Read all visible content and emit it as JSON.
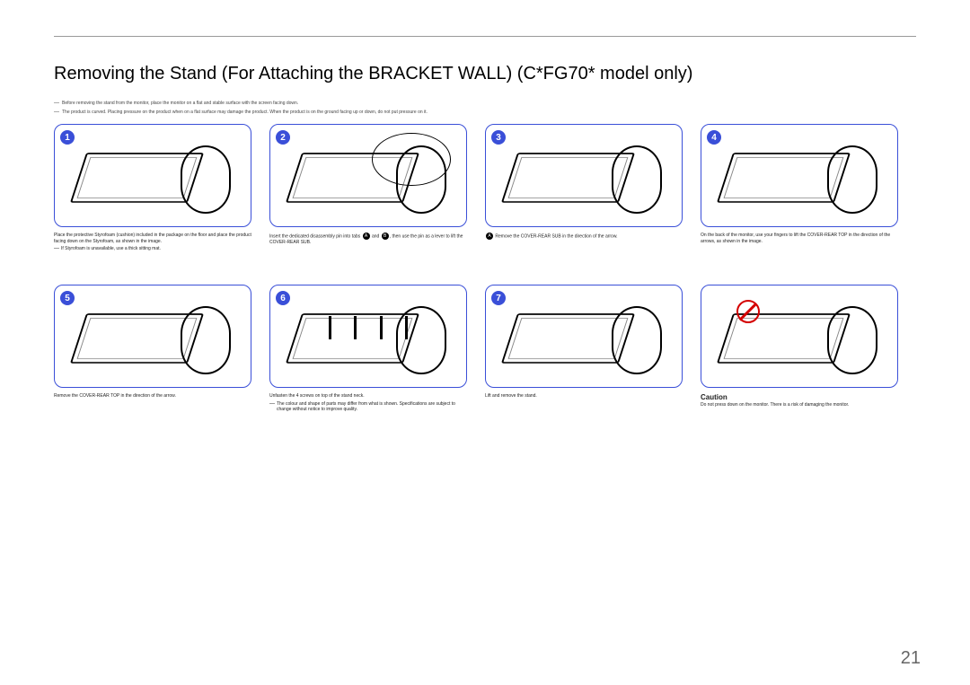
{
  "page_number": "21",
  "heading": "Removing the Stand (For Attaching the BRACKET WALL) (C*FG70* model only)",
  "top_notes": [
    "Before removing the stand from the monitor, place the monitor on a flat and stable surface with the screen facing down.",
    "The product is curved. Placing pressure on the product when on a flat surface may damage the product. When the product is on the ground facing up or down, do not put pressure on it."
  ],
  "panels": [
    {
      "num": "1",
      "caption": "Place the protective Styrofoam (cushion) included in the package on the floor and place the product facing down on the Styrofoam, as shown in the image.",
      "sub": "If Styrofoam is unavailable, use a thick sitting mat."
    },
    {
      "num": "2",
      "caption_prefix": "Insert the dedicated disassembly pin into tabs ",
      "caption_mid": " and ",
      "caption_suffix": ", then use the pin as a lever to lift the COVER-REAR SUB.",
      "dotA": "A",
      "dotB": "B"
    },
    {
      "num": "3",
      "caption": "Remove the COVER-REAR SUB in the direction of the arrow.",
      "has_inset": true,
      "dotA": "A"
    },
    {
      "num": "4",
      "caption": "On the back of the monitor, use your fingers to lift the COVER-REAR TOP in the direction of the arrows, as shown in the image."
    },
    {
      "num": "5",
      "caption": "Remove the COVER-REAR TOP in the direction of the arrow."
    },
    {
      "num": "6",
      "caption": "Unfasten the 4 screws on top of the stand neck.",
      "sub": "The colour and shape of parts may differ from what is shown. Specifications are subject to change without notice to improve quality."
    },
    {
      "num": "7",
      "caption": "Lift and remove the stand."
    },
    {
      "num": "",
      "caution": "Caution",
      "caption": "Do not press down on the monitor. There is a risk of damaging the monitor.",
      "has_stop": true
    }
  ]
}
